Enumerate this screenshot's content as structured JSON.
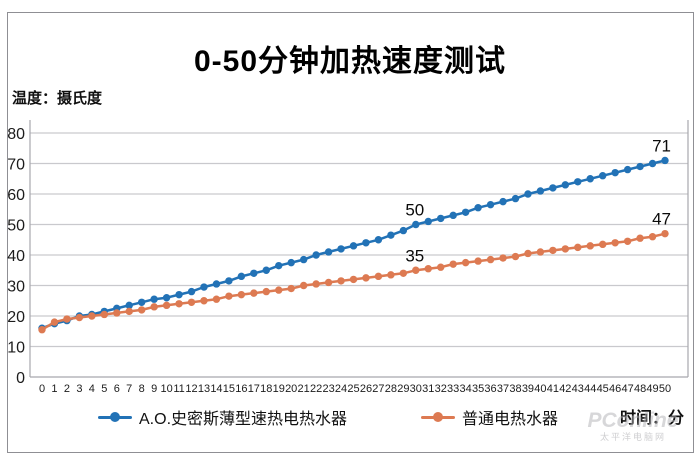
{
  "header": {
    "title": "0-50分钟加热速度测试",
    "y_axis_title": "温度：摄氏度",
    "x_axis_title": "时间：分"
  },
  "legend": {
    "items": [
      {
        "label": "A.O.史密斯薄型速热电热水器",
        "color": "#2272B6"
      },
      {
        "label": "普通电热水器",
        "color": "#DD7A52"
      }
    ]
  },
  "watermark": {
    "text": "PConline",
    "subtext": "太平洋电脑网"
  },
  "colors": {
    "blue_series": "#2272B6",
    "orange_series": "#DD7A52",
    "gridline": "#c9c9cd",
    "axis_line": "#a8a8ad",
    "tick_text": "#1c1c1c"
  },
  "chart_data": {
    "type": "line",
    "title": "0-50分钟加热速度测试",
    "xlabel": "时间：分",
    "ylabel": "温度：摄氏度",
    "ylim": [
      0,
      80
    ],
    "y_ticks": [
      0,
      10,
      20,
      30,
      40,
      50,
      60,
      70,
      80
    ],
    "grid": true,
    "legend_position": "bottom",
    "x": [
      0,
      1,
      2,
      3,
      4,
      5,
      6,
      7,
      8,
      9,
      10,
      11,
      12,
      13,
      14,
      15,
      16,
      17,
      18,
      19,
      20,
      21,
      22,
      23,
      24,
      25,
      26,
      27,
      28,
      29,
      30,
      31,
      32,
      33,
      34,
      35,
      36,
      37,
      38,
      39,
      40,
      41,
      42,
      43,
      44,
      45,
      46,
      47,
      48,
      49,
      50
    ],
    "series": [
      {
        "name": "A.O.史密斯薄型速热电热水器",
        "color": "#2272B6",
        "values": [
          16,
          17.5,
          18.5,
          20,
          20.5,
          21.5,
          22.5,
          23.5,
          24.5,
          25.5,
          26,
          27,
          28,
          29.5,
          30.5,
          31.5,
          33,
          34,
          35,
          36.5,
          37.5,
          38.5,
          40,
          41,
          42,
          43,
          44,
          45,
          46.5,
          48,
          50,
          51,
          52,
          53,
          54,
          55.5,
          56.5,
          57.5,
          58.5,
          60,
          61,
          62,
          63,
          64,
          65,
          66,
          67,
          68,
          69,
          70,
          71
        ]
      },
      {
        "name": "普通电热水器",
        "color": "#DD7A52",
        "values": [
          15.5,
          18,
          19,
          19.5,
          20,
          20.5,
          21,
          21.5,
          22,
          23,
          23.5,
          24,
          24.5,
          25,
          25.5,
          26.5,
          27,
          27.5,
          28,
          28.5,
          29,
          30,
          30.5,
          31,
          31.5,
          32,
          32.5,
          33,
          33.5,
          34,
          35,
          35.5,
          36,
          37,
          37.5,
          38,
          38.5,
          39,
          39.5,
          40.5,
          41,
          41.5,
          42,
          42.5,
          43,
          43.5,
          44,
          44.5,
          45.5,
          46,
          47
        ]
      }
    ],
    "annotations": [
      {
        "series": 0,
        "x": 30,
        "text": "50"
      },
      {
        "series": 1,
        "x": 30,
        "text": "35"
      },
      {
        "series": 0,
        "x": 50,
        "text": "71"
      },
      {
        "series": 1,
        "x": 50,
        "text": "47"
      }
    ]
  }
}
